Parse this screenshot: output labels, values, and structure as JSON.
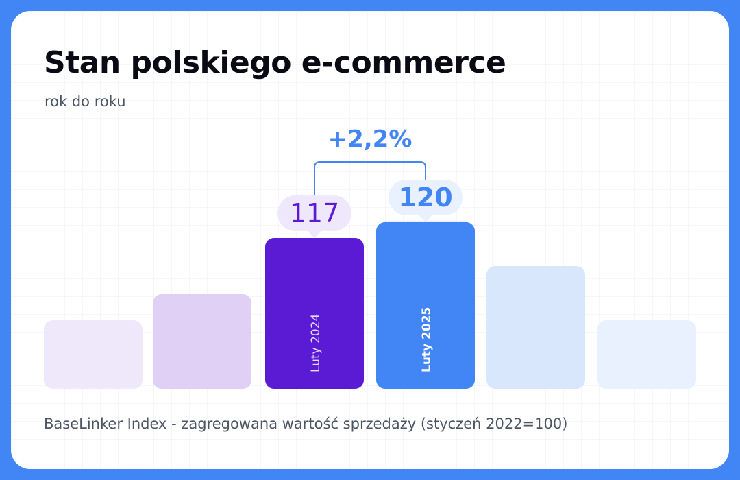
{
  "title": "Stan polskiego e-commerce",
  "subtitle": "rok do roku",
  "footnote": "BaseLinker Index - zagregowana wartość sprzedaży (styczeń 2022=100)",
  "chart_data": {
    "type": "bar",
    "title": "Stan polskiego e-commerce",
    "subtitle": "rok do roku",
    "xlabel": "",
    "ylabel": "",
    "grid": false,
    "legend": "none",
    "categories": [
      "Luty 2024",
      "Luty 2025"
    ],
    "values": [
      117,
      120
    ],
    "data_labels": [
      "117",
      "120"
    ],
    "change_annotation": "+2,2%",
    "bar_colors": [
      "#5b1bd4",
      "#4285f4"
    ],
    "label_bubble_colors": [
      "#efe7fb",
      "#e9f1fe"
    ],
    "label_text_colors": [
      "#5b1bd4",
      "#4285f4"
    ],
    "annotation_color": "#4285f4",
    "decorative_bar_colors": [
      "#efe8fa",
      "#e0d0f5",
      "#d9e7fd",
      "#e9f1fe"
    ]
  }
}
